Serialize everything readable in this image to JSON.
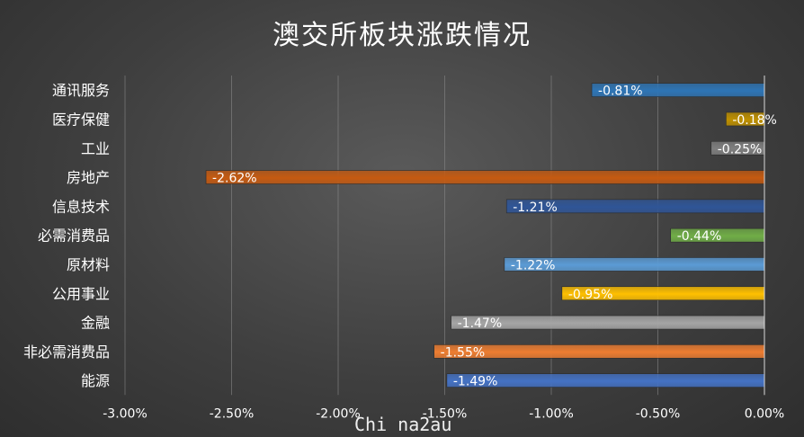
{
  "chart_data": {
    "type": "bar",
    "orientation": "horizontal",
    "title": "澳交所板块涨跌情况",
    "categories": [
      "通讯服务",
      "医疗保健",
      "工业",
      "房地产",
      "信息技术",
      "必需消费品",
      "原材料",
      "公用事业",
      "金融",
      "非必需消费品",
      "能源"
    ],
    "values": [
      -0.81,
      -0.18,
      -0.25,
      -2.62,
      -1.21,
      -0.44,
      -1.22,
      -0.95,
      -1.47,
      -1.55,
      -1.49
    ],
    "data_labels": [
      "-0.81%",
      "-0.18%",
      "-0.25%",
      "-2.62%",
      "-1.21%",
      "-0.44%",
      "-1.22%",
      "-0.95%",
      "-1.47%",
      "-1.55%",
      "-1.49%"
    ],
    "bar_colors": [
      "#2e75b6",
      "#bf9000",
      "#7f7f7f",
      "#c55a11",
      "#2f5597",
      "#70ad47",
      "#5b9bd5",
      "#ffc000",
      "#a5a5a5",
      "#ed7d31",
      "#4472c4"
    ],
    "xlim": [
      -3.0,
      0.0
    ],
    "x_ticks": [
      -3.0,
      -2.5,
      -2.0,
      -1.5,
      -1.0,
      -0.5,
      0.0
    ],
    "x_tick_labels": [
      "-3.00%",
      "-2.50%",
      "-2.00%",
      "-1.50%",
      "-1.00%",
      "-0.50%",
      "0.00%"
    ],
    "grid": true,
    "legend": "none"
  },
  "watermark": "Chi na2au"
}
